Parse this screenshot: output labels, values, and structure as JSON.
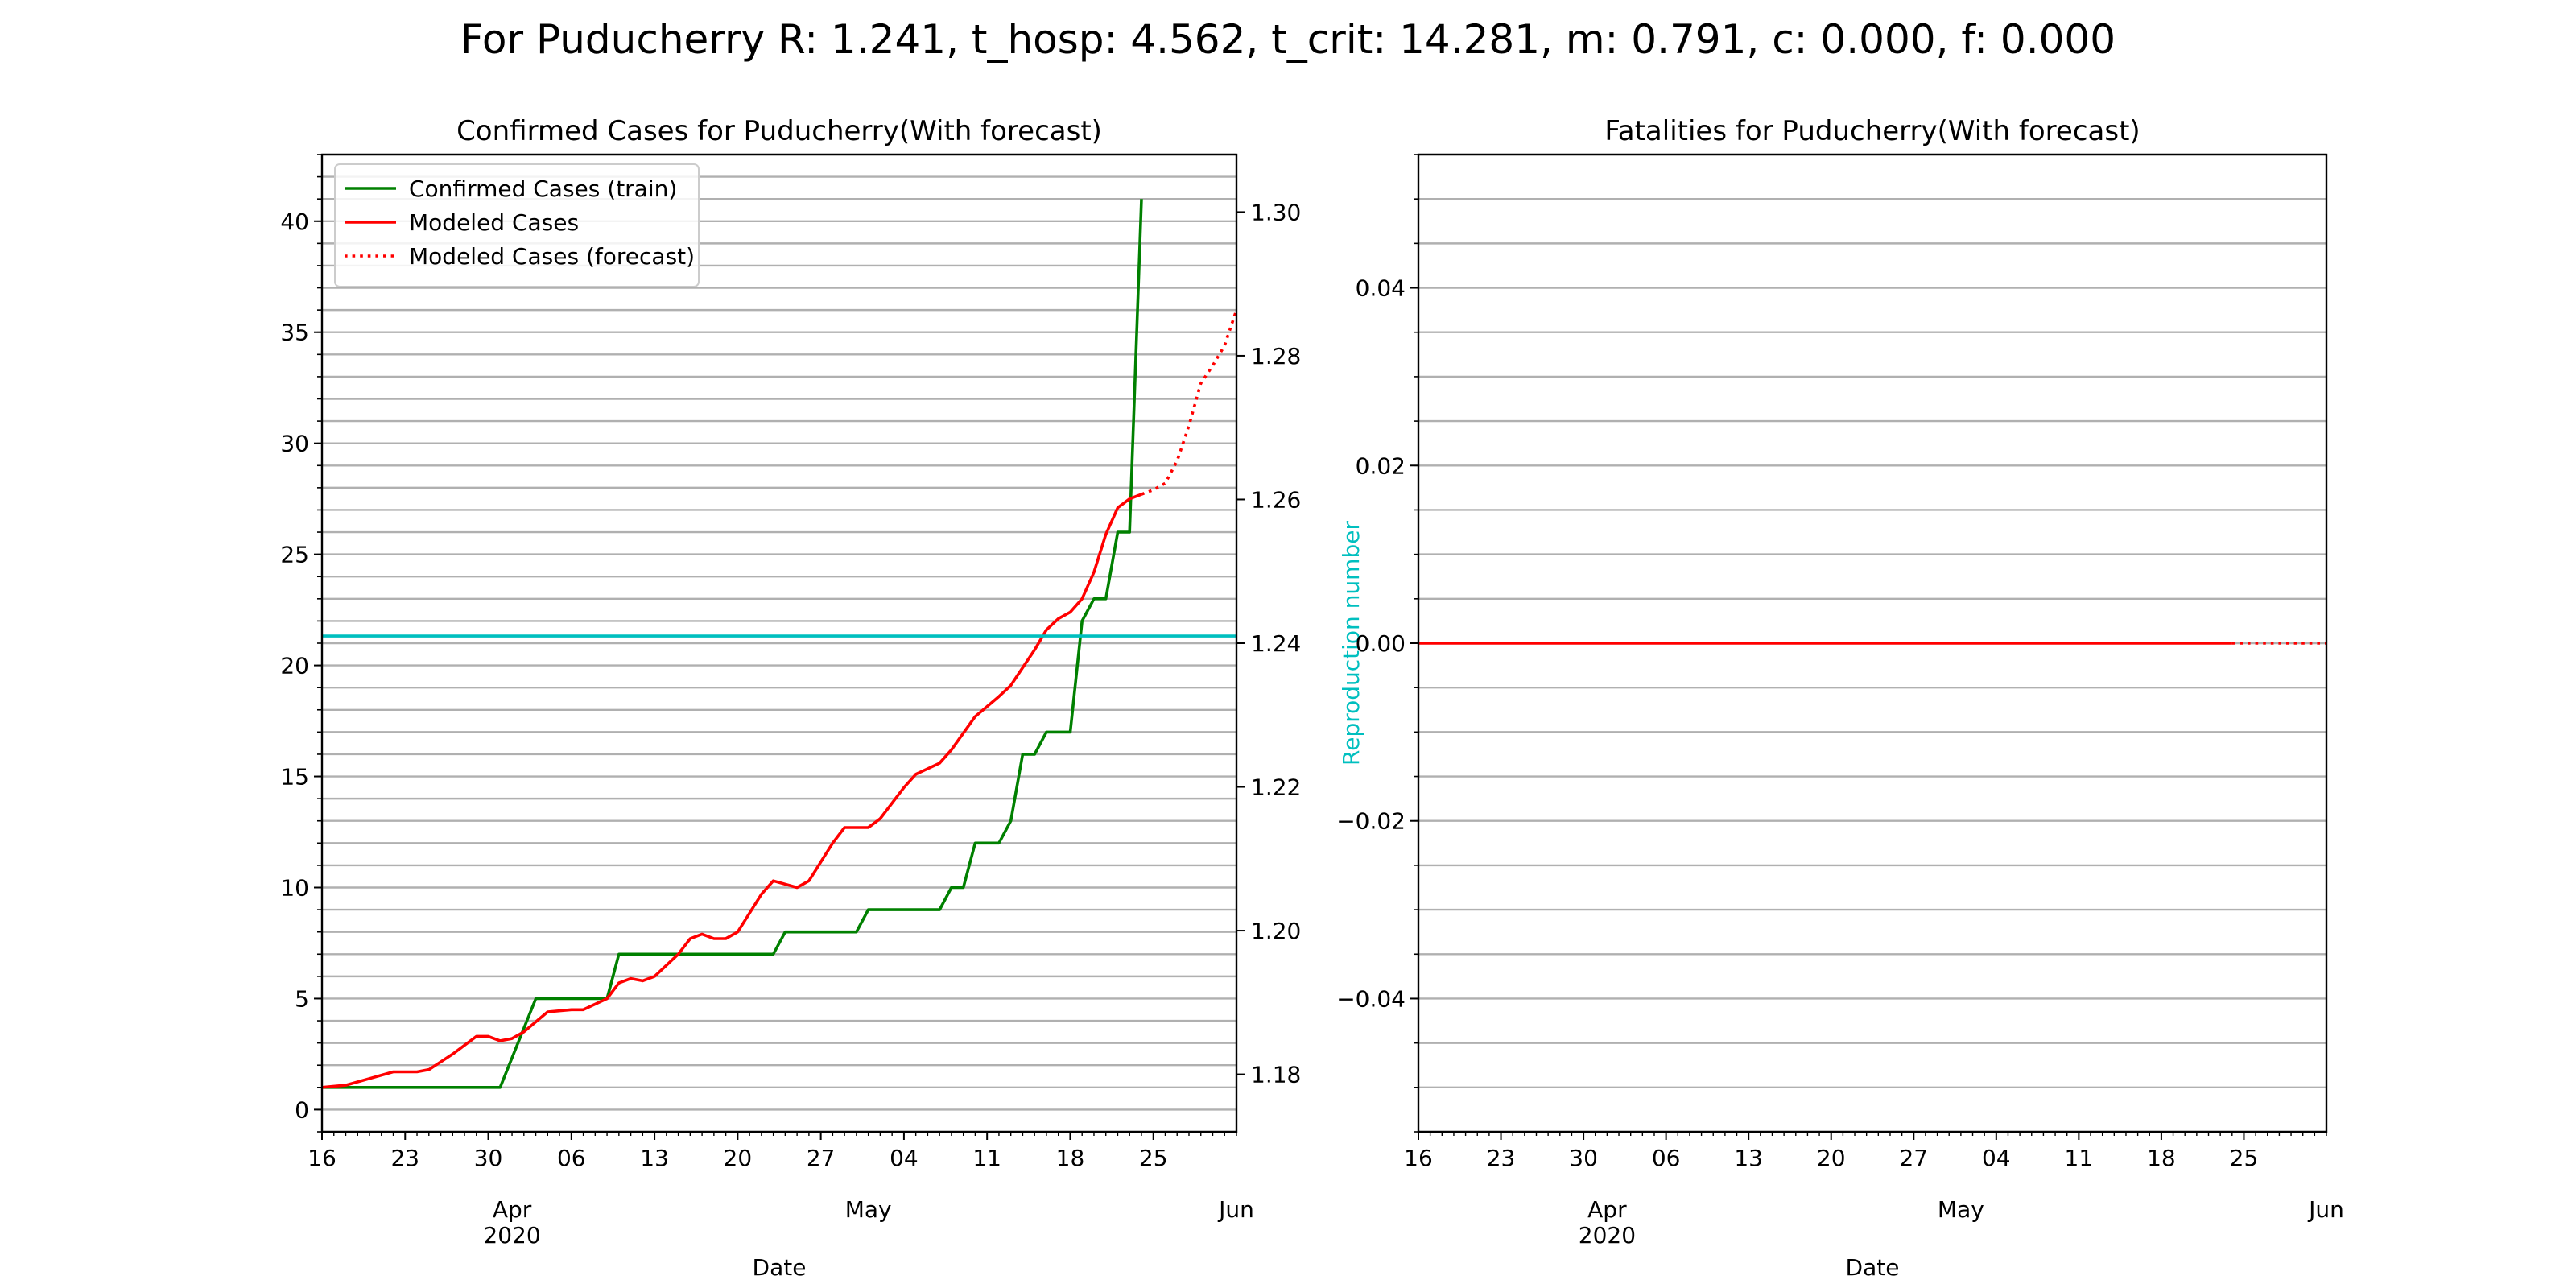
{
  "figure": {
    "suptitle": "For Puducherry R: 1.241, t_hosp: 4.562, t_crit: 14.281, m: 0.791, c: 0.000, f: 0.000"
  },
  "chart_data": [
    {
      "type": "line",
      "title": "Confirmed Cases for Puducherry(With forecast)",
      "xlabel": "Date",
      "ylabel": "",
      "ylabel_right": "Reproduction number",
      "ylim": [
        -1,
        43
      ],
      "ylim_right": [
        1.172,
        1.308
      ],
      "xlim": [
        "2020-03-16",
        "2020-06-01"
      ],
      "yticks": [
        0,
        5,
        10,
        15,
        20,
        25,
        30,
        35,
        40
      ],
      "yticks_right": [
        1.18,
        1.2,
        1.22,
        1.24,
        1.26,
        1.28,
        1.3
      ],
      "xtick_day_labels": [
        {
          "date": "2020-03-16",
          "label": "16"
        },
        {
          "date": "2020-03-23",
          "label": "23"
        },
        {
          "date": "2020-03-30",
          "label": "30"
        },
        {
          "date": "2020-04-06",
          "label": "06"
        },
        {
          "date": "2020-04-13",
          "label": "13"
        },
        {
          "date": "2020-04-20",
          "label": "20"
        },
        {
          "date": "2020-04-27",
          "label": "27"
        },
        {
          "date": "2020-05-04",
          "label": "04"
        },
        {
          "date": "2020-05-11",
          "label": "11"
        },
        {
          "date": "2020-05-18",
          "label": "18"
        },
        {
          "date": "2020-05-25",
          "label": "25"
        }
      ],
      "xtick_month_labels": [
        {
          "date": "2020-04-01",
          "label": "Apr"
        },
        {
          "date": "2020-05-01",
          "label": "May"
        },
        {
          "date": "2020-06-01",
          "label": "Jun"
        }
      ],
      "year_label": {
        "date": "2020-04-01",
        "label": "2020"
      },
      "grid": true,
      "legend_position": "upper left",
      "series": [
        {
          "name": "Confirmed Cases (train)",
          "color": "#008000",
          "style": "solid",
          "points": [
            [
              "2020-03-16",
              1
            ],
            [
              "2020-03-31",
              1
            ],
            [
              "2020-04-03",
              5
            ],
            [
              "2020-04-09",
              5
            ],
            [
              "2020-04-10",
              7
            ],
            [
              "2020-04-23",
              7
            ],
            [
              "2020-04-24",
              8
            ],
            [
              "2020-04-30",
              8
            ],
            [
              "2020-05-01",
              9
            ],
            [
              "2020-05-07",
              9
            ],
            [
              "2020-05-08",
              10
            ],
            [
              "2020-05-09",
              10
            ],
            [
              "2020-05-10",
              12
            ],
            [
              "2020-05-12",
              12
            ],
            [
              "2020-05-13",
              13
            ],
            [
              "2020-05-14",
              16
            ],
            [
              "2020-05-15",
              16
            ],
            [
              "2020-05-16",
              17
            ],
            [
              "2020-05-18",
              17
            ],
            [
              "2020-05-19",
              22
            ],
            [
              "2020-05-20",
              23
            ],
            [
              "2020-05-21",
              23
            ],
            [
              "2020-05-22",
              26
            ],
            [
              "2020-05-23",
              26
            ],
            [
              "2020-05-24",
              41
            ]
          ]
        },
        {
          "name": "Modeled Cases",
          "color": "#ff0000",
          "style": "solid",
          "points": [
            [
              "2020-03-16",
              1.0
            ],
            [
              "2020-03-18",
              1.1
            ],
            [
              "2020-03-20",
              1.4
            ],
            [
              "2020-03-22",
              1.7
            ],
            [
              "2020-03-24",
              1.7
            ],
            [
              "2020-03-25",
              1.8
            ],
            [
              "2020-03-27",
              2.5
            ],
            [
              "2020-03-29",
              3.3
            ],
            [
              "2020-03-30",
              3.3
            ],
            [
              "2020-03-31",
              3.1
            ],
            [
              "2020-04-01",
              3.2
            ],
            [
              "2020-04-02",
              3.5
            ],
            [
              "2020-04-04",
              4.4
            ],
            [
              "2020-04-06",
              4.5
            ],
            [
              "2020-04-07",
              4.5
            ],
            [
              "2020-04-09",
              5.0
            ],
            [
              "2020-04-10",
              5.7
            ],
            [
              "2020-04-11",
              5.9
            ],
            [
              "2020-04-12",
              5.8
            ],
            [
              "2020-04-13",
              6.0
            ],
            [
              "2020-04-15",
              7.0
            ],
            [
              "2020-04-16",
              7.7
            ],
            [
              "2020-04-17",
              7.9
            ],
            [
              "2020-04-18",
              7.7
            ],
            [
              "2020-04-19",
              7.7
            ],
            [
              "2020-04-20",
              8.0
            ],
            [
              "2020-04-22",
              9.7
            ],
            [
              "2020-04-23",
              10.3
            ],
            [
              "2020-04-25",
              10.0
            ],
            [
              "2020-04-26",
              10.3
            ],
            [
              "2020-04-28",
              12.0
            ],
            [
              "2020-04-29",
              12.7
            ],
            [
              "2020-05-01",
              12.7
            ],
            [
              "2020-05-02",
              13.1
            ],
            [
              "2020-05-04",
              14.5
            ],
            [
              "2020-05-05",
              15.1
            ],
            [
              "2020-05-07",
              15.6
            ],
            [
              "2020-05-08",
              16.2
            ],
            [
              "2020-05-10",
              17.7
            ],
            [
              "2020-05-12",
              18.6
            ],
            [
              "2020-05-13",
              19.1
            ],
            [
              "2020-05-15",
              20.7
            ],
            [
              "2020-05-16",
              21.6
            ],
            [
              "2020-05-17",
              22.1
            ],
            [
              "2020-05-18",
              22.4
            ],
            [
              "2020-05-19",
              23.0
            ],
            [
              "2020-05-20",
              24.2
            ],
            [
              "2020-05-21",
              25.9
            ],
            [
              "2020-05-22",
              27.1
            ],
            [
              "2020-05-23",
              27.5
            ],
            [
              "2020-05-24",
              27.7
            ]
          ]
        },
        {
          "name": "Modeled Cases (forecast)",
          "color": "#ff0000",
          "style": "dotted",
          "points": [
            [
              "2020-05-24",
              27.7
            ],
            [
              "2020-05-25",
              27.9
            ],
            [
              "2020-05-26",
              28.2
            ],
            [
              "2020-05-27",
              29.2
            ],
            [
              "2020-05-28",
              30.8
            ],
            [
              "2020-05-29",
              32.7
            ],
            [
              "2020-05-30",
              33.5
            ],
            [
              "2020-05-31",
              34.4
            ],
            [
              "2020-06-01",
              36.0
            ]
          ]
        },
        {
          "name": "",
          "color": "#00bfbf",
          "style": "solid",
          "axis": "right",
          "points": [
            [
              "2020-03-16",
              1.241
            ],
            [
              "2020-06-01",
              1.241
            ]
          ]
        }
      ]
    },
    {
      "type": "line",
      "title": "Fatalities for Puducherry(With forecast)",
      "xlabel": "Date",
      "ylabel": "",
      "ylim": [
        -0.055,
        0.055
      ],
      "xlim": [
        "2020-03-16",
        "2020-06-01"
      ],
      "yticks": [
        -0.04,
        -0.02,
        0.0,
        0.02,
        0.04
      ],
      "ytick_labels": [
        "−0.04",
        "−0.02",
        "0.00",
        "0.02",
        "0.04"
      ],
      "xtick_day_labels": [
        {
          "date": "2020-03-16",
          "label": "16"
        },
        {
          "date": "2020-03-23",
          "label": "23"
        },
        {
          "date": "2020-03-30",
          "label": "30"
        },
        {
          "date": "2020-04-06",
          "label": "06"
        },
        {
          "date": "2020-04-13",
          "label": "13"
        },
        {
          "date": "2020-04-20",
          "label": "20"
        },
        {
          "date": "2020-04-27",
          "label": "27"
        },
        {
          "date": "2020-05-04",
          "label": "04"
        },
        {
          "date": "2020-05-11",
          "label": "11"
        },
        {
          "date": "2020-05-18",
          "label": "18"
        },
        {
          "date": "2020-05-25",
          "label": "25"
        }
      ],
      "xtick_month_labels": [
        {
          "date": "2020-04-01",
          "label": "Apr"
        },
        {
          "date": "2020-05-01",
          "label": "May"
        },
        {
          "date": "2020-06-01",
          "label": "Jun"
        }
      ],
      "year_label": {
        "date": "2020-04-01",
        "label": "2020"
      },
      "grid": true,
      "series": [
        {
          "name": "",
          "color": "#ff0000",
          "style": "solid",
          "points": [
            [
              "2020-03-16",
              0
            ],
            [
              "2020-05-24",
              0
            ]
          ]
        },
        {
          "name": "",
          "color": "#ff0000",
          "style": "dotted",
          "points": [
            [
              "2020-05-24",
              0
            ],
            [
              "2020-06-01",
              0
            ]
          ]
        }
      ]
    }
  ]
}
